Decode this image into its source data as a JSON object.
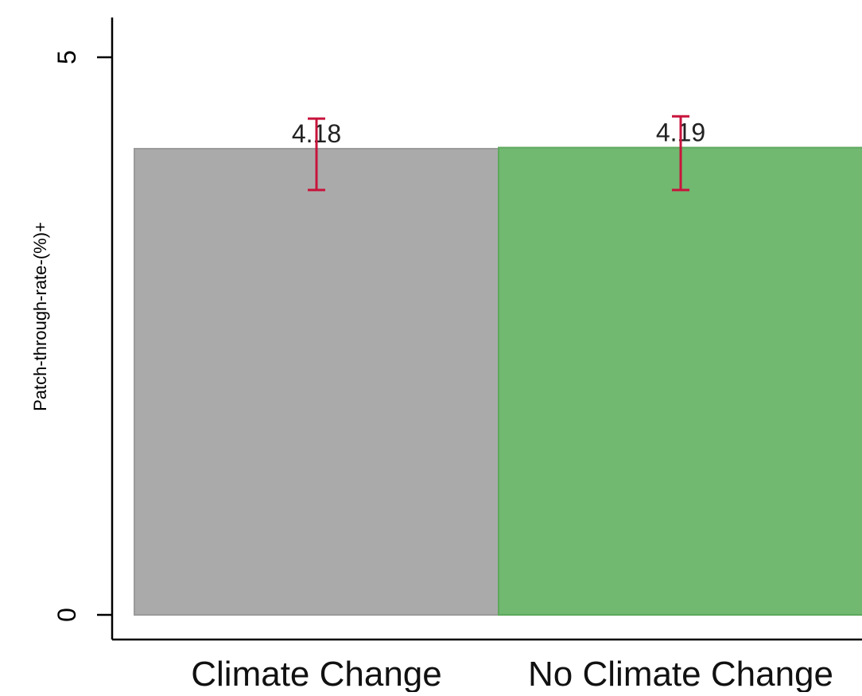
{
  "chart_data": {
    "type": "bar",
    "title": "",
    "xlabel": "",
    "ylabel": "Patch‑through‑rate‑(%)+",
    "ylim": [
      0,
      5
    ],
    "yticks": [
      "0",
      "5"
    ],
    "categories": [
      "Climate Change",
      "No Climate Change"
    ],
    "values": [
      4.18,
      4.19
    ],
    "value_labels": [
      "4.18",
      "4.19"
    ],
    "error_bars": [
      {
        "low": 3.81,
        "high": 4.45
      },
      {
        "low": 3.81,
        "high": 4.47
      }
    ],
    "colors": [
      "#aaaaaa",
      "#71b871"
    ],
    "bar_edge_colors": [
      "#9a9a9a",
      "#5ea85e"
    ],
    "error_bar_color": "#c8143c",
    "grid": false,
    "legend": "none"
  }
}
